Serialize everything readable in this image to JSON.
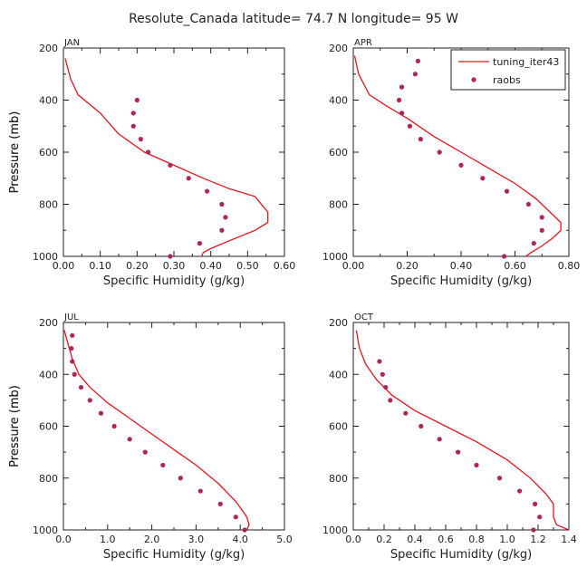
{
  "figure_title": "Resolute_Canada   latitude= 74.7 N longitude= 95 W",
  "legend": {
    "model_label": "tuning_iter43",
    "obs_label": "raobs"
  },
  "colors": {
    "model": "#e8141c",
    "obs": "#b0245a",
    "axis": "#222222"
  },
  "chart_data": [
    {
      "type": "line",
      "panel": "JAN",
      "xlabel": "Specific Humidity (g/kg)",
      "ylabel": "Pressure (mb)",
      "xlim": [
        0,
        0.6
      ],
      "ylim": [
        200,
        1000
      ],
      "xticks": [
        "0.00",
        "0.10",
        "0.20",
        "0.30",
        "0.40",
        "0.50",
        "0.60"
      ],
      "yticks": [
        "200",
        "400",
        "600",
        "800",
        "1000"
      ],
      "series": [
        {
          "name": "tuning_iter43",
          "style": "line",
          "x": [
            0.005,
            0.02,
            0.04,
            0.1,
            0.15,
            0.22,
            0.3,
            0.38,
            0.45,
            0.52,
            0.555,
            0.555,
            0.52,
            0.45,
            0.4,
            0.38,
            0.375
          ],
          "y": [
            240,
            320,
            380,
            450,
            530,
            600,
            650,
            700,
            740,
            770,
            830,
            870,
            900,
            940,
            970,
            985,
            1000
          ]
        },
        {
          "name": "raobs",
          "style": "points",
          "x": [
            0.2,
            0.19,
            0.19,
            0.21,
            0.23,
            0.29,
            0.34,
            0.39,
            0.43,
            0.44,
            0.43,
            0.37,
            0.29
          ],
          "y": [
            400,
            450,
            500,
            550,
            600,
            650,
            700,
            750,
            800,
            850,
            900,
            950,
            1000
          ]
        }
      ]
    },
    {
      "type": "line",
      "panel": "APR",
      "xlabel": "Specific Humidity (g/kg)",
      "ylabel": "Pressure (mb)",
      "xlim": [
        0,
        0.8
      ],
      "ylim": [
        200,
        1000
      ],
      "xticks": [
        "0.00",
        "0.20",
        "0.40",
        "0.60",
        "0.80"
      ],
      "yticks": [
        "200",
        "400",
        "600",
        "800",
        "1000"
      ],
      "series": [
        {
          "name": "tuning_iter43",
          "style": "line",
          "x": [
            0.005,
            0.02,
            0.06,
            0.12,
            0.2,
            0.3,
            0.4,
            0.5,
            0.6,
            0.68,
            0.74,
            0.77,
            0.77,
            0.74,
            0.7,
            0.66,
            0.64
          ],
          "y": [
            230,
            300,
            380,
            420,
            470,
            540,
            600,
            660,
            720,
            780,
            840,
            870,
            900,
            930,
            960,
            985,
            1000
          ]
        },
        {
          "name": "raobs",
          "style": "points",
          "x": [
            0.24,
            0.23,
            0.18,
            0.17,
            0.18,
            0.21,
            0.25,
            0.32,
            0.4,
            0.48,
            0.57,
            0.65,
            0.7,
            0.7,
            0.67,
            0.56
          ],
          "y": [
            250,
            300,
            350,
            400,
            450,
            500,
            550,
            600,
            650,
            700,
            750,
            800,
            850,
            900,
            950,
            1000
          ]
        }
      ]
    },
    {
      "type": "line",
      "panel": "JUL",
      "xlabel": "Specific Humidity (g/kg)",
      "ylabel": "Pressure (mb)",
      "xlim": [
        0,
        5.0
      ],
      "ylim": [
        200,
        1000
      ],
      "xticks": [
        "0.0",
        "1.0",
        "2.0",
        "3.0",
        "4.0",
        "5.0"
      ],
      "yticks": [
        "200",
        "400",
        "600",
        "800",
        "1000"
      ],
      "series": [
        {
          "name": "tuning_iter43",
          "style": "line",
          "x": [
            0.02,
            0.1,
            0.2,
            0.35,
            0.6,
            1.0,
            1.5,
            2.0,
            2.5,
            3.0,
            3.5,
            3.9,
            4.15,
            4.2,
            4.15
          ],
          "y": [
            230,
            280,
            340,
            400,
            450,
            510,
            570,
            630,
            690,
            750,
            820,
            890,
            950,
            980,
            1000
          ]
        },
        {
          "name": "raobs",
          "style": "points",
          "x": [
            0.2,
            0.18,
            0.2,
            0.25,
            0.4,
            0.6,
            0.85,
            1.15,
            1.5,
            1.85,
            2.25,
            2.65,
            3.1,
            3.55,
            3.9,
            4.1
          ],
          "y": [
            250,
            300,
            350,
            400,
            450,
            500,
            550,
            600,
            650,
            700,
            750,
            800,
            850,
            900,
            950,
            1000
          ]
        }
      ]
    },
    {
      "type": "line",
      "panel": "OCT",
      "xlabel": "Specific Humidity (g/kg)",
      "ylabel": "Pressure (mb)",
      "xlim": [
        0,
        1.4
      ],
      "ylim": [
        200,
        1000
      ],
      "xticks": [
        "0.0",
        "0.2",
        "0.4",
        "0.6",
        "0.8",
        "1.0",
        "1.2",
        "1.4"
      ],
      "yticks": [
        "200",
        "400",
        "600",
        "800",
        "1000"
      ],
      "series": [
        {
          "name": "tuning_iter43",
          "style": "line",
          "x": [
            0.02,
            0.04,
            0.08,
            0.15,
            0.25,
            0.4,
            0.6,
            0.8,
            1.0,
            1.15,
            1.25,
            1.3,
            1.3,
            1.32,
            1.4
          ],
          "y": [
            230,
            300,
            360,
            420,
            480,
            540,
            600,
            660,
            730,
            800,
            860,
            900,
            950,
            980,
            1000
          ]
        },
        {
          "name": "raobs",
          "style": "points",
          "x": [
            0.17,
            0.19,
            0.21,
            0.24,
            0.34,
            0.44,
            0.56,
            0.68,
            0.8,
            0.95,
            1.08,
            1.18,
            1.21,
            1.17
          ],
          "y": [
            350,
            400,
            450,
            500,
            550,
            600,
            650,
            700,
            750,
            800,
            850,
            900,
            950,
            1000
          ]
        }
      ]
    }
  ]
}
